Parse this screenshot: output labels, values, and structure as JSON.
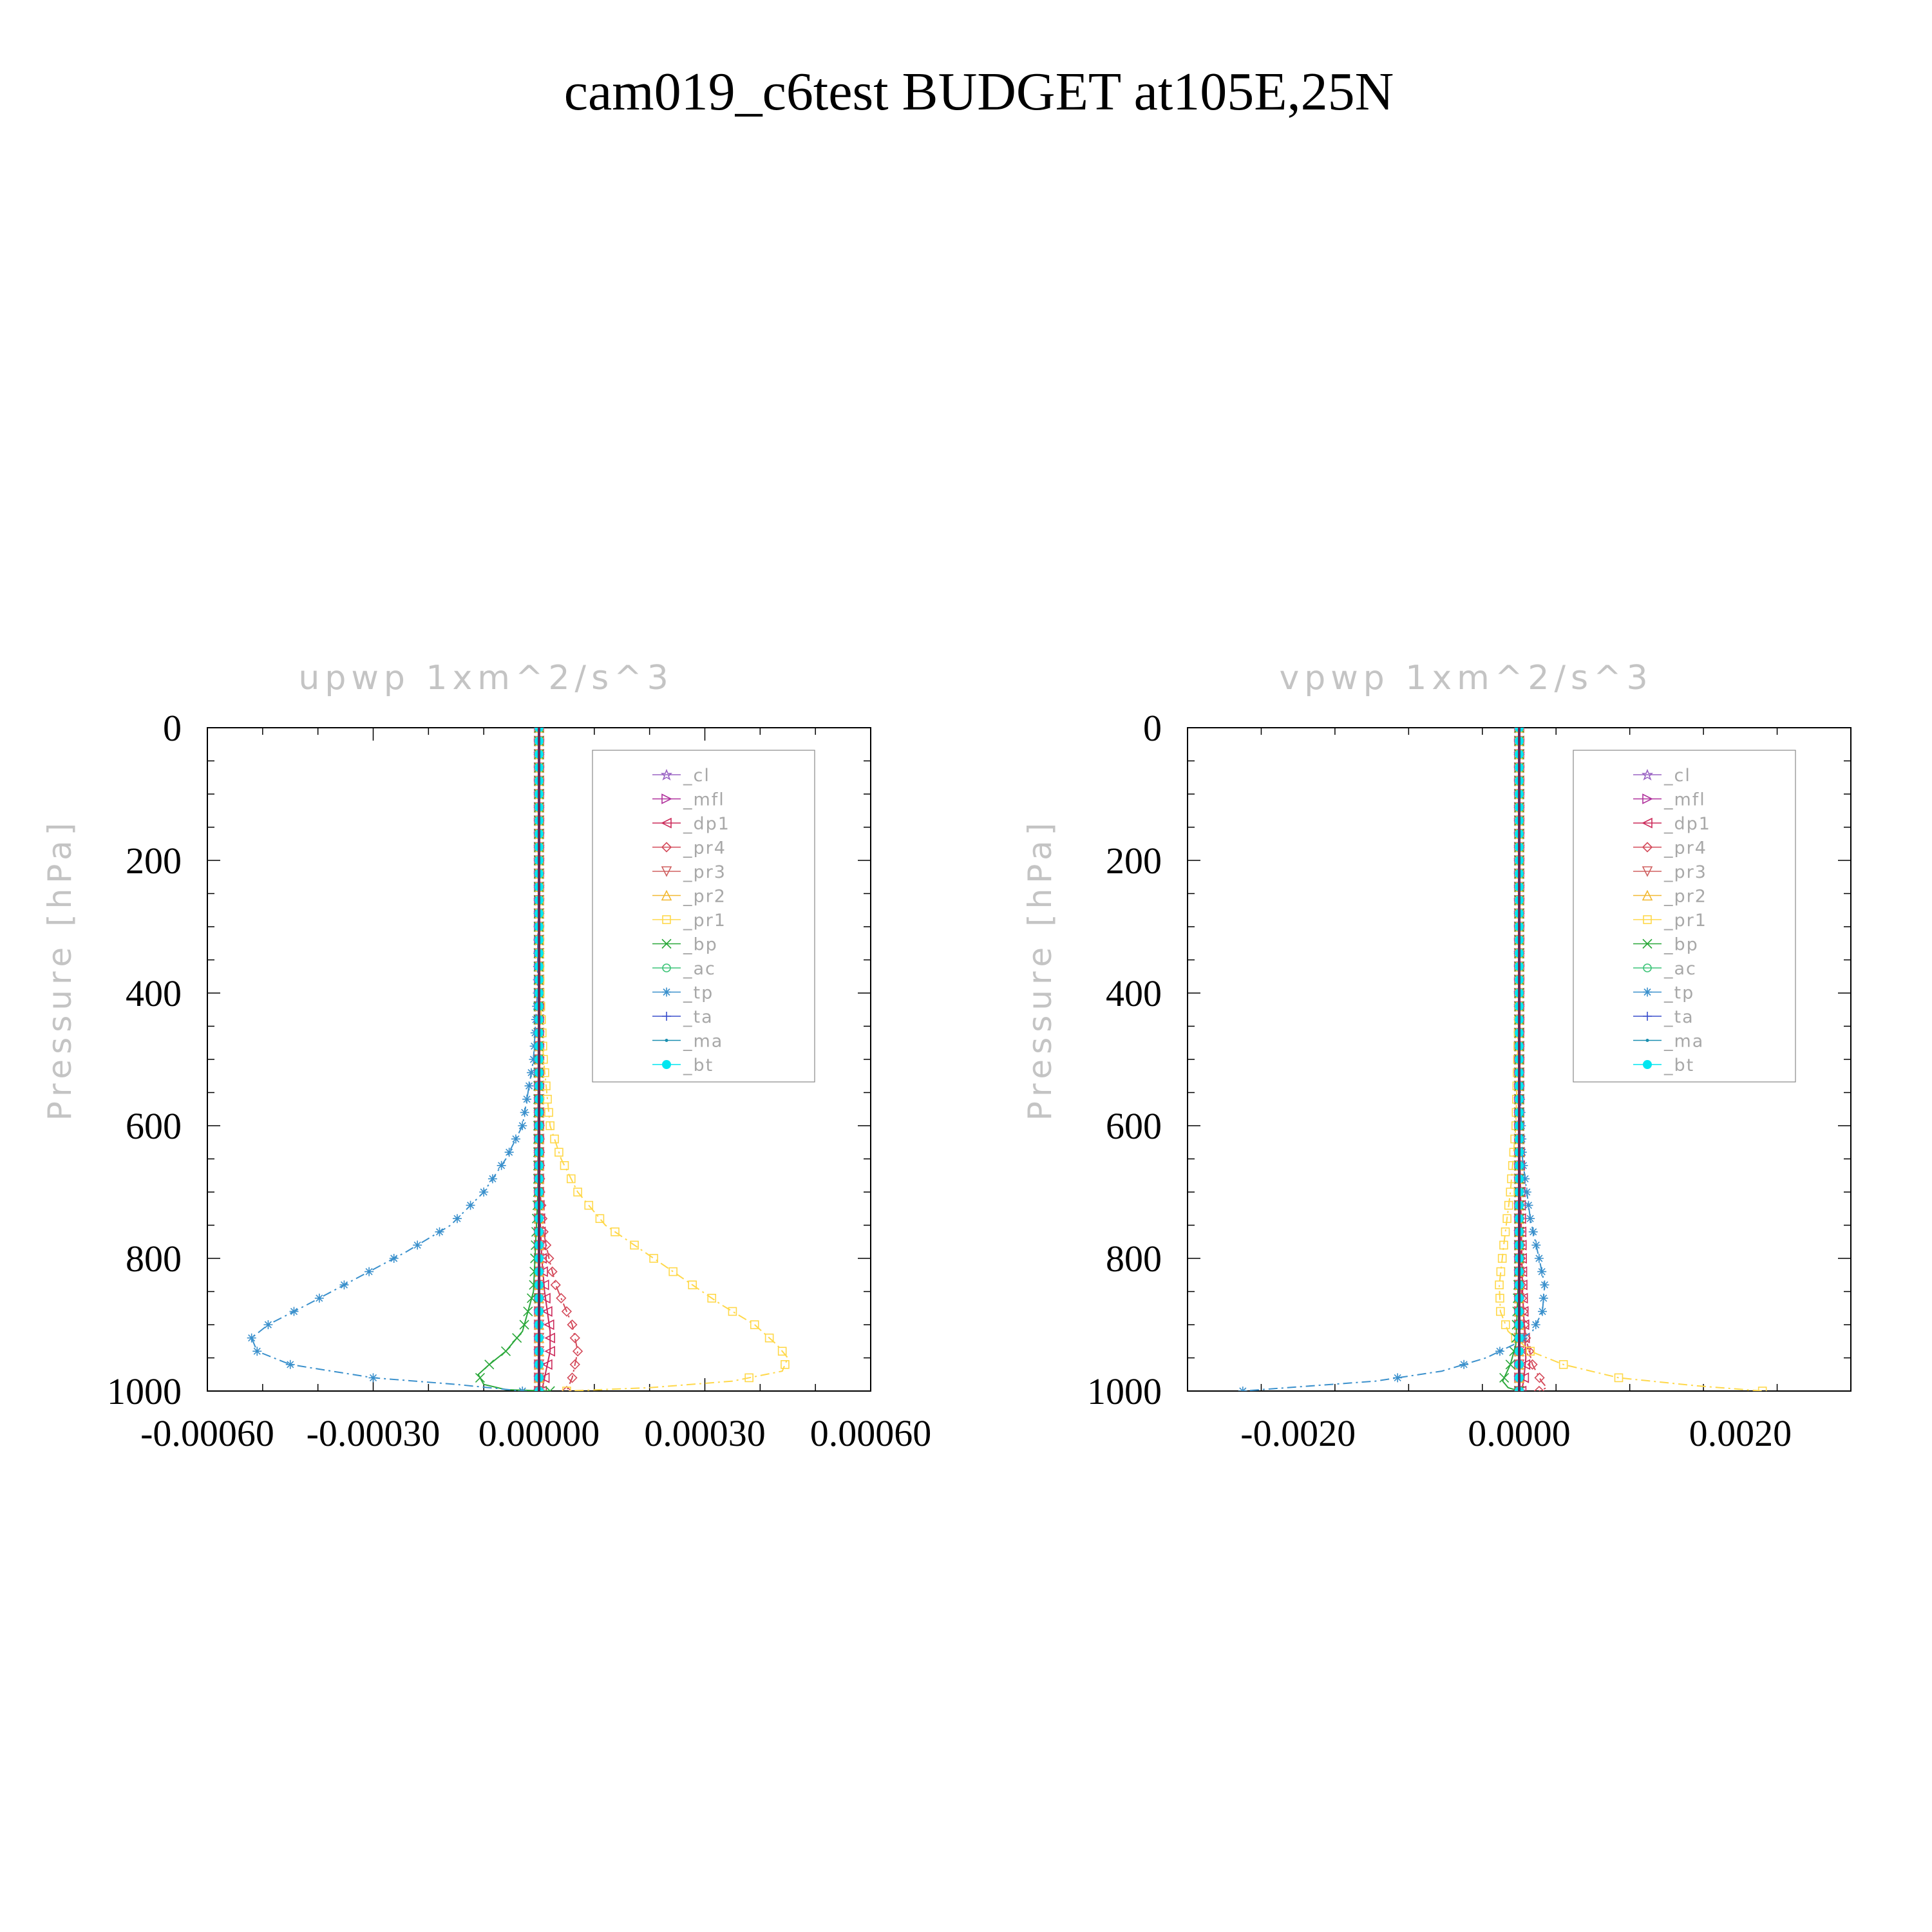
{
  "figure": {
    "title": "cam019_c6test  BUDGET at105E,25N"
  },
  "colors": {
    "cl": "#9a63c4",
    "mfl": "#b0319c",
    "dp1": "#cc2a5a",
    "pr4": "#d44a5a",
    "pr3": "#d06060",
    "pr2": "#f2b830",
    "pr1": "#ffd84a",
    "bp": "#2aa83a",
    "ac": "#3cc478",
    "tp": "#3a90cc",
    "ta": "#3a4fcc",
    "ma": "#1a8fb0",
    "bt": "#00e6f0"
  },
  "chart_data": [
    {
      "type": "line",
      "title": "upwp   1xm^2/s^3",
      "ylabel": "Pressure [hPa]",
      "xlabel": "",
      "ylim": [
        0,
        1000
      ],
      "y_inverted": true,
      "xlim": [
        -0.0006,
        0.0006
      ],
      "xticks": [
        -0.0006,
        -0.0003,
        0.0,
        0.0003,
        0.0006
      ],
      "xtick_labels": [
        "-0.00060",
        "-0.00030",
        "0.00000",
        "0.00030",
        "0.00060"
      ],
      "yticks": [
        0,
        200,
        400,
        600,
        800,
        1000
      ],
      "ytick_labels": [
        "0",
        "200",
        "400",
        "600",
        "800",
        "1000"
      ],
      "legend_position": "top-right",
      "series": [
        {
          "name": "_cl",
          "key": "cl",
          "x": [
            0,
            0,
            0,
            0,
            0
          ],
          "y": [
            0,
            250,
            500,
            750,
            1000
          ]
        },
        {
          "name": "_mfl",
          "key": "mfl",
          "x": [
            0,
            0,
            0,
            0,
            0
          ],
          "y": [
            0,
            250,
            500,
            750,
            1000
          ]
        },
        {
          "name": "_dp1",
          "key": "dp1",
          "x": [
            0,
            0,
            0,
            5e-06,
            1e-05,
            1.5e-05,
            2e-05,
            2e-05,
            1.5e-05,
            1e-05,
            5e-06
          ],
          "y": [
            0,
            400,
            700,
            800,
            850,
            880,
            910,
            940,
            960,
            980,
            1000
          ]
        },
        {
          "name": "_pr4",
          "key": "pr4",
          "x": [
            0,
            0,
            2e-06,
            8e-06,
            1.8e-05,
            3e-05,
            4.5e-05,
            6e-05,
            7e-05,
            6e-05,
            5e-05
          ],
          "y": [
            0,
            500,
            700,
            760,
            800,
            840,
            870,
            900,
            940,
            980,
            1000
          ]
        },
        {
          "name": "_pr3",
          "key": "pr3",
          "x": [
            0,
            0,
            0,
            0,
            0
          ],
          "y": [
            0,
            250,
            500,
            750,
            1000
          ]
        },
        {
          "name": "_pr2",
          "key": "pr2",
          "x": [
            0,
            0,
            0,
            0,
            0
          ],
          "y": [
            0,
            250,
            500,
            750,
            1000
          ]
        },
        {
          "name": "_pr1",
          "key": "pr1",
          "x": [
            0,
            2e-06,
            8e-06,
            2e-05,
            4e-05,
            7e-05,
            0.00012,
            0.00019,
            0.00026,
            0.00033,
            0.00039,
            0.00043,
            0.00045,
            0.00044,
            0.00035,
            0.0002,
            5e-05
          ],
          "y": [
            200,
            400,
            500,
            600,
            650,
            700,
            750,
            790,
            830,
            870,
            900,
            930,
            950,
            970,
            985,
            995,
            1000
          ]
        },
        {
          "name": "_bp",
          "key": "bp",
          "x": [
            0,
            -2e-06,
            -1e-05,
            -3e-05,
            -6e-05,
            -9e-05,
            -0.00011,
            -0.0001,
            -6e-05,
            2e-05
          ],
          "y": [
            0,
            700,
            850,
            910,
            940,
            960,
            975,
            990,
            998,
            1000
          ]
        },
        {
          "name": "_ac",
          "key": "ac",
          "x": [
            0,
            0,
            0,
            0,
            0
          ],
          "y": [
            0,
            250,
            500,
            750,
            1000
          ]
        },
        {
          "name": "_tp",
          "key": "tp",
          "x": [
            0,
            -3e-06,
            -1e-05,
            -3e-05,
            -6e-05,
            -0.0001,
            -0.00016,
            -0.00024,
            -0.00033,
            -0.00042,
            -0.00049,
            -0.00052,
            -0.00051,
            -0.00045,
            -0.0003,
            -0.00015,
            -3e-05
          ],
          "y": [
            150,
            400,
            500,
            600,
            650,
            700,
            750,
            790,
            830,
            870,
            900,
            920,
            940,
            960,
            980,
            990,
            1000
          ]
        },
        {
          "name": "_ta",
          "key": "ta",
          "x": [
            0,
            0,
            0,
            0,
            0
          ],
          "y": [
            0,
            250,
            500,
            750,
            1000
          ]
        },
        {
          "name": "_ma",
          "key": "ma",
          "x": [
            0,
            0,
            0,
            0,
            0
          ],
          "y": [
            0,
            250,
            500,
            750,
            1000
          ]
        },
        {
          "name": "_bt",
          "key": "bt",
          "x": [
            0,
            0,
            0,
            0,
            0
          ],
          "y": [
            0,
            250,
            500,
            750,
            1000
          ]
        }
      ]
    },
    {
      "type": "line",
      "title": "vpwp   1xm^2/s^3",
      "ylabel": "Pressure [hPa]",
      "xlabel": "",
      "ylim": [
        0,
        1000
      ],
      "y_inverted": true,
      "xlim": [
        -0.003,
        0.003
      ],
      "xticks": [
        -0.002,
        0.0,
        0.002
      ],
      "xtick_labels": [
        "-0.0020",
        "0.0000",
        "0.0020"
      ],
      "yticks": [
        0,
        200,
        400,
        600,
        800,
        1000
      ],
      "ytick_labels": [
        "0",
        "200",
        "400",
        "600",
        "800",
        "1000"
      ],
      "legend_position": "top-right",
      "series": [
        {
          "name": "_cl",
          "key": "cl",
          "x": [
            0,
            0,
            0,
            0,
            0
          ],
          "y": [
            0,
            250,
            500,
            750,
            1000
          ]
        },
        {
          "name": "_mfl",
          "key": "mfl",
          "x": [
            0,
            0,
            0,
            0,
            0
          ],
          "y": [
            0,
            250,
            500,
            750,
            1000
          ]
        },
        {
          "name": "_dp1",
          "key": "dp1",
          "x": [
            0,
            0,
            3e-05,
            6e-05,
            4e-05,
            2e-05
          ],
          "y": [
            0,
            600,
            850,
            950,
            985,
            1000
          ]
        },
        {
          "name": "_pr4",
          "key": "pr4",
          "x": [
            0,
            0,
            2e-05,
            6e-05,
            0.00012,
            0.0002,
            0.00025,
            0.00018
          ],
          "y": [
            0,
            700,
            850,
            920,
            960,
            985,
            995,
            1000
          ]
        },
        {
          "name": "_pr3",
          "key": "pr3",
          "x": [
            0,
            0,
            0,
            0,
            0
          ],
          "y": [
            0,
            250,
            500,
            750,
            1000
          ]
        },
        {
          "name": "_pr2",
          "key": "pr2",
          "x": [
            0,
            0,
            0,
            0,
            0
          ],
          "y": [
            0,
            250,
            500,
            750,
            1000
          ]
        },
        {
          "name": "_pr1",
          "key": "pr1",
          "x": [
            0,
            -3e-05,
            -8e-05,
            -0.00014,
            -0.00018,
            -0.00017,
            -0.0001,
            0.0001,
            0.0004,
            0.0009,
            0.0016,
            0.0022
          ],
          "y": [
            400,
            600,
            700,
            780,
            840,
            880,
            910,
            940,
            960,
            980,
            992,
            1000
          ]
        },
        {
          "name": "_bp",
          "key": "bp",
          "x": [
            0,
            0,
            -3e-05,
            -8e-05,
            -0.00015,
            -0.0001,
            0
          ],
          "y": [
            0,
            800,
            930,
            960,
            985,
            995,
            1000
          ]
        },
        {
          "name": "_ac",
          "key": "ac",
          "x": [
            0,
            0,
            0,
            0,
            0
          ],
          "y": [
            0,
            250,
            500,
            750,
            1000
          ]
        },
        {
          "name": "_tp",
          "key": "tp",
          "x": [
            0,
            3e-05,
            0.0001,
            0.00018,
            0.00023,
            0.00021,
            0.00012,
            -5e-05,
            -0.0003,
            -0.0007,
            -0.0013,
            -0.0021,
            -0.0025
          ],
          "y": [
            500,
            650,
            740,
            800,
            840,
            880,
            910,
            930,
            950,
            970,
            985,
            995,
            1000
          ]
        },
        {
          "name": "_ta",
          "key": "ta",
          "x": [
            0,
            0,
            0,
            0,
            0
          ],
          "y": [
            0,
            250,
            500,
            750,
            1000
          ]
        },
        {
          "name": "_ma",
          "key": "ma",
          "x": [
            0,
            0,
            0,
            0,
            0
          ],
          "y": [
            0,
            250,
            500,
            750,
            1000
          ]
        },
        {
          "name": "_bt",
          "key": "bt",
          "x": [
            0,
            0,
            0,
            0,
            0
          ],
          "y": [
            0,
            250,
            500,
            750,
            1000
          ]
        }
      ]
    }
  ]
}
